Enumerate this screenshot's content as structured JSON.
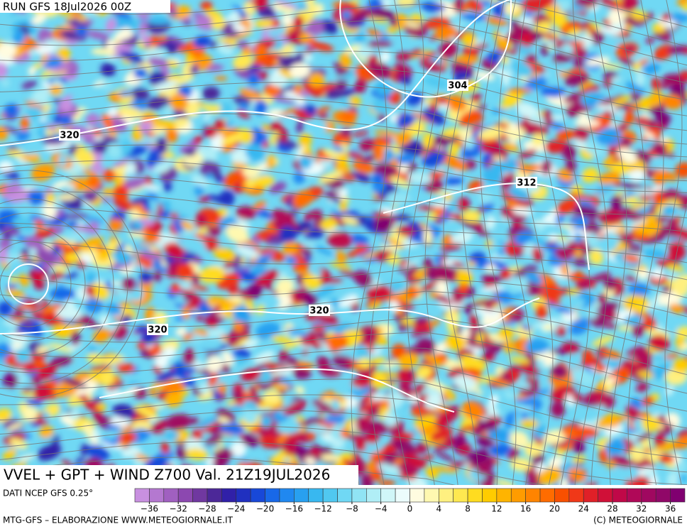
{
  "header": {
    "run": "RUN GFS 18Jul2026 00Z"
  },
  "map": {
    "contour_labels": [
      304,
      312,
      320,
      320,
      320
    ]
  },
  "footer": {
    "title": "VVEL + GPT + WIND Z700 Val. 21Z19JUL2026",
    "source": "DATI NCEP GFS 0.25°",
    "credit": "MTG-GFS – ELABORAZIONE WWW.METEOGIORNALE.IT",
    "copyright": "(C) METEOGIORNALE"
  },
  "colorbar": {
    "lim": [
      -38,
      38
    ],
    "colors": [
      "#c890e0",
      "#b478d0",
      "#a060c0",
      "#8c48b0",
      "#7038a0",
      "#4c2898",
      "#3020a8",
      "#2030c0",
      "#1848d8",
      "#1868e8",
      "#2088f0",
      "#28a0f0",
      "#38b8f0",
      "#50c8f0",
      "#70d8f4",
      "#90e4f4",
      "#b0eef6",
      "#d0f6f8",
      "#ecfcfc",
      "#fffce0",
      "#fff8b0",
      "#fff080",
      "#ffe850",
      "#ffdc20",
      "#ffcc00",
      "#ffb400",
      "#ff9c00",
      "#ff8400",
      "#ff6c00",
      "#f85000",
      "#f03818",
      "#e02028",
      "#d01038",
      "#c00848",
      "#b00858",
      "#a00860",
      "#900868",
      "#800070"
    ],
    "ticks": [
      {
        "value": -36,
        "label": "−36"
      },
      {
        "value": -32,
        "label": "−32"
      },
      {
        "value": -28,
        "label": "−28"
      },
      {
        "value": -24,
        "label": "−24"
      },
      {
        "value": -20,
        "label": "−20"
      },
      {
        "value": -16,
        "label": "−16"
      },
      {
        "value": -12,
        "label": "−12"
      },
      {
        "value": -8,
        "label": "−8"
      },
      {
        "value": -4,
        "label": "−4"
      },
      0,
      4,
      8,
      12,
      16,
      20,
      24,
      28,
      32,
      36
    ]
  }
}
